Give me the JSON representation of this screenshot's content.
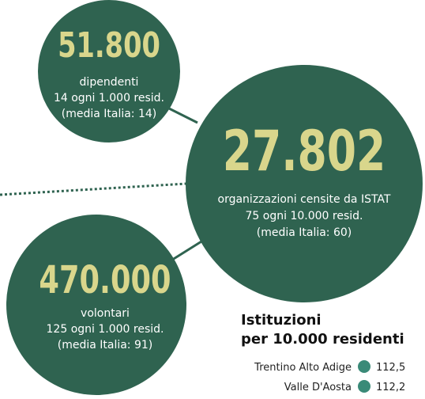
{
  "stats": [
    {
      "value": "51.800",
      "lines": [
        "dipendenti",
        "14 ogni 1.000 resid.",
        "(media Italia: 14)"
      ]
    },
    {
      "value": "27.802",
      "lines": [
        "organizzazioni censite da ISTAT",
        "75 ogni 10.000 resid.",
        "(media Italia: 60)"
      ]
    },
    {
      "value": "470.000",
      "lines": [
        "volontari",
        "125 ogni 1.000 resid.",
        "(media Italia: 91)"
      ]
    }
  ],
  "legend": {
    "title": [
      "Istituzioni",
      "per 10.000 residenti"
    ],
    "rows": [
      {
        "name": "Trentino Alto Adige",
        "value": "112,5"
      },
      {
        "name": "Valle D'Aosta",
        "value": "112,2"
      }
    ]
  }
}
